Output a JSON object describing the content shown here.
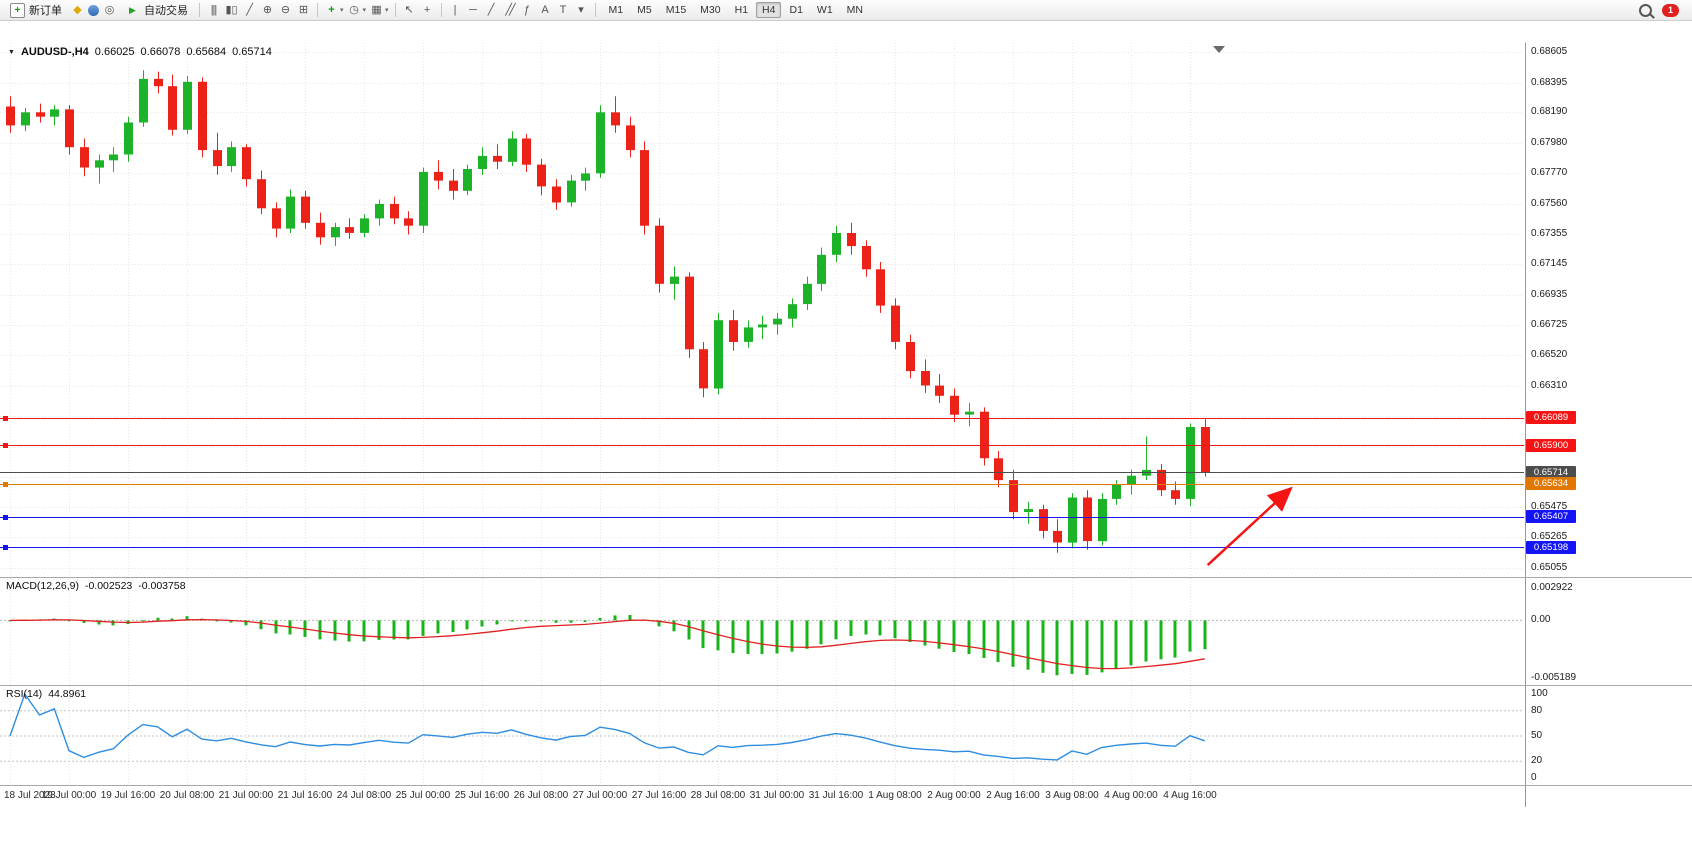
{
  "toolbar": {
    "new_order_label": "新订单",
    "auto_trading_label": "自动交易",
    "timeframes": [
      "M1",
      "M5",
      "M15",
      "M30",
      "H1",
      "H4",
      "D1",
      "W1",
      "MN"
    ],
    "active_timeframe": "H4",
    "notification_count": "1"
  },
  "icons": {
    "symbol_menu": "▼",
    "market_watch": "◆",
    "terminal": "◎",
    "auto_trading_play": "▶",
    "bars_chart": "|||",
    "candle_chart": "▮▯",
    "line_chart": "╱",
    "zoom_in": "⊕",
    "zoom_out": "⊖",
    "tile_windows": "⊞",
    "indicators_add": "+",
    "period_clock": "◷",
    "templates": "▦",
    "cursor": "↖",
    "crosshair": "+",
    "vertical_line": "|",
    "horizontal_line": "─",
    "trendline": "╱",
    "channel": "╱╱",
    "fibonacci": "ƒ",
    "text": "A",
    "text_label": "T",
    "shapes": "▾",
    "dropdown": "▾"
  },
  "colors": {
    "bull": "#1db329",
    "bear": "#ec2117",
    "macd_hist": "#18b318",
    "macd_signal": "#e02020",
    "rsi_line": "#2e8de0",
    "grid": "#e6e6e6",
    "resistance": "#f51414",
    "support": "#1414f5",
    "trend_orange": "#e07800",
    "current_price": "#4d4d4d",
    "annotation": "#f51414"
  },
  "chart_data": {
    "type": "candlestick",
    "symbol": "AUDUSD-",
    "timeframe": "H4",
    "title": "AUDUSD-,H4",
    "current_ohlc": {
      "open": "0.66025",
      "high": "0.66078",
      "low": "0.65684",
      "close": "0.65714"
    },
    "price_range": [
      0.65055,
      0.68605
    ],
    "price_axis_ticks": [
      "0.68605",
      "0.68395",
      "0.68190",
      "0.67980",
      "0.67770",
      "0.67560",
      "0.67355",
      "0.67145",
      "0.66935",
      "0.66725",
      "0.66520",
      "0.66310",
      "0.66100",
      "0.65890",
      "0.65680",
      "0.65475",
      "0.65265",
      "0.65055"
    ],
    "levels": [
      {
        "price": 0.66089,
        "label": "0.66089",
        "color_key": "resistance"
      },
      {
        "price": 0.659,
        "label": "0.65900",
        "color_key": "resistance"
      },
      {
        "price": 0.65714,
        "label": "0.65714",
        "color_key": "current_price",
        "current": true
      },
      {
        "price": 0.65634,
        "label": "0.65634",
        "color_key": "trend_orange"
      },
      {
        "price": 0.65407,
        "label": "0.65407",
        "color_key": "support"
      },
      {
        "price": 0.65198,
        "label": "0.65198",
        "color_key": "support"
      }
    ],
    "time_labels": [
      "18 Jul 2023",
      "19 Jul 00:00",
      "19 Jul 16:00",
      "20 Jul 08:00",
      "21 Jul 00:00",
      "21 Jul 16:00",
      "24 Jul 08:00",
      "25 Jul 00:00",
      "25 Jul 16:00",
      "26 Jul 08:00",
      "27 Jul 00:00",
      "27 Jul 16:00",
      "28 Jul 08:00",
      "31 Jul 00:00",
      "31 Jul 16:00",
      "1 Aug 08:00",
      "2 Aug 00:00",
      "2 Aug 16:00",
      "3 Aug 08:00",
      "4 Aug 00:00",
      "4 Aug 16:00"
    ],
    "label_every_n_candles": 4,
    "candles": [
      [
        0.6823,
        0.683,
        0.6805,
        0.681
      ],
      [
        0.681,
        0.6822,
        0.6806,
        0.6819
      ],
      [
        0.6819,
        0.6825,
        0.6812,
        0.6816
      ],
      [
        0.6816,
        0.6824,
        0.681,
        0.6821
      ],
      [
        0.6821,
        0.6824,
        0.679,
        0.6795
      ],
      [
        0.6795,
        0.6801,
        0.6775,
        0.6781
      ],
      [
        0.6781,
        0.679,
        0.677,
        0.6786
      ],
      [
        0.6786,
        0.6795,
        0.6778,
        0.679
      ],
      [
        0.679,
        0.6816,
        0.6785,
        0.6812
      ],
      [
        0.6812,
        0.6848,
        0.6809,
        0.6842
      ],
      [
        0.6842,
        0.6847,
        0.6832,
        0.6837
      ],
      [
        0.6837,
        0.6845,
        0.6803,
        0.6807
      ],
      [
        0.6807,
        0.6844,
        0.6804,
        0.684
      ],
      [
        0.684,
        0.6843,
        0.6788,
        0.6793
      ],
      [
        0.6793,
        0.6805,
        0.6776,
        0.6782
      ],
      [
        0.6782,
        0.6799,
        0.6778,
        0.6795
      ],
      [
        0.6795,
        0.6797,
        0.6768,
        0.6773
      ],
      [
        0.6773,
        0.6779,
        0.6749,
        0.6753
      ],
      [
        0.6753,
        0.6757,
        0.6733,
        0.6739
      ],
      [
        0.6739,
        0.6766,
        0.6736,
        0.6761
      ],
      [
        0.6761,
        0.6765,
        0.6739,
        0.6743
      ],
      [
        0.6743,
        0.675,
        0.6728,
        0.6733
      ],
      [
        0.6733,
        0.6743,
        0.6727,
        0.674
      ],
      [
        0.674,
        0.6746,
        0.6732,
        0.6736
      ],
      [
        0.6736,
        0.6749,
        0.6733,
        0.6746
      ],
      [
        0.6746,
        0.6759,
        0.6741,
        0.6756
      ],
      [
        0.6756,
        0.6761,
        0.6742,
        0.6746
      ],
      [
        0.6746,
        0.6751,
        0.6735,
        0.6741
      ],
      [
        0.6741,
        0.6781,
        0.6736,
        0.6778
      ],
      [
        0.6778,
        0.6786,
        0.6766,
        0.6772
      ],
      [
        0.6772,
        0.678,
        0.6759,
        0.6765
      ],
      [
        0.6765,
        0.6783,
        0.6762,
        0.678
      ],
      [
        0.678,
        0.6795,
        0.6776,
        0.6789
      ],
      [
        0.6789,
        0.6797,
        0.678,
        0.6785
      ],
      [
        0.6785,
        0.6806,
        0.6782,
        0.6801
      ],
      [
        0.6801,
        0.6804,
        0.6778,
        0.6783
      ],
      [
        0.6783,
        0.6787,
        0.6762,
        0.6768
      ],
      [
        0.6768,
        0.6773,
        0.6752,
        0.6757
      ],
      [
        0.6757,
        0.6776,
        0.6754,
        0.6772
      ],
      [
        0.6772,
        0.6781,
        0.6765,
        0.6777
      ],
      [
        0.6777,
        0.6824,
        0.6774,
        0.6819
      ],
      [
        0.6819,
        0.683,
        0.6805,
        0.681
      ],
      [
        0.681,
        0.6816,
        0.6788,
        0.6793
      ],
      [
        0.6793,
        0.6799,
        0.6735,
        0.6741
      ],
      [
        0.6741,
        0.6746,
        0.6695,
        0.6701
      ],
      [
        0.6701,
        0.6713,
        0.669,
        0.6706
      ],
      [
        0.6706,
        0.6709,
        0.665,
        0.6656
      ],
      [
        0.6656,
        0.6661,
        0.6623,
        0.6629
      ],
      [
        0.6629,
        0.6681,
        0.6625,
        0.6676
      ],
      [
        0.6676,
        0.6683,
        0.6655,
        0.6661
      ],
      [
        0.6661,
        0.6676,
        0.6657,
        0.6671
      ],
      [
        0.6671,
        0.6679,
        0.6663,
        0.6673
      ],
      [
        0.6673,
        0.6681,
        0.6666,
        0.6677
      ],
      [
        0.6677,
        0.6691,
        0.6671,
        0.6687
      ],
      [
        0.6687,
        0.6706,
        0.6683,
        0.6701
      ],
      [
        0.6701,
        0.6726,
        0.6696,
        0.6721
      ],
      [
        0.6721,
        0.6741,
        0.6716,
        0.6736
      ],
      [
        0.6736,
        0.6743,
        0.6721,
        0.6727
      ],
      [
        0.6727,
        0.6731,
        0.6706,
        0.6711
      ],
      [
        0.6711,
        0.6716,
        0.6681,
        0.6686
      ],
      [
        0.6686,
        0.6691,
        0.6656,
        0.6661
      ],
      [
        0.6661,
        0.6666,
        0.6636,
        0.6641
      ],
      [
        0.6641,
        0.6649,
        0.6626,
        0.6631
      ],
      [
        0.6631,
        0.6639,
        0.6619,
        0.6624
      ],
      [
        0.6624,
        0.6629,
        0.6606,
        0.6611
      ],
      [
        0.6611,
        0.6619,
        0.6603,
        0.6613
      ],
      [
        0.6613,
        0.6616,
        0.6576,
        0.6581
      ],
      [
        0.6581,
        0.6586,
        0.6561,
        0.6566
      ],
      [
        0.6566,
        0.6573,
        0.6539,
        0.6544
      ],
      [
        0.6544,
        0.6551,
        0.6536,
        0.6546
      ],
      [
        0.6546,
        0.6549,
        0.6526,
        0.6531
      ],
      [
        0.6531,
        0.6539,
        0.6516,
        0.6523
      ],
      [
        0.6523,
        0.6557,
        0.6519,
        0.6554
      ],
      [
        0.6554,
        0.6559,
        0.6518,
        0.6524
      ],
      [
        0.6524,
        0.6557,
        0.6521,
        0.6553
      ],
      [
        0.6553,
        0.6566,
        0.6549,
        0.6563
      ],
      [
        0.6563,
        0.6573,
        0.6556,
        0.6569
      ],
      [
        0.6569,
        0.6596,
        0.6566,
        0.6573
      ],
      [
        0.6573,
        0.6577,
        0.6555,
        0.6559
      ],
      [
        0.6559,
        0.6565,
        0.6549,
        0.6553
      ],
      [
        0.6553,
        0.6605,
        0.6548,
        0.66025
      ],
      [
        0.66025,
        0.66078,
        0.65684,
        0.65714
      ]
    ],
    "indicators": [
      {
        "type": "macd",
        "name": "MACD(12,26,9)",
        "fast": 12,
        "slow": 26,
        "signal": 9,
        "main_value": "-0.002523",
        "signal_value": "-0.003758",
        "scale_labels": [
          "0.002922",
          "0.00",
          "-0.005189"
        ],
        "max": 0.002922,
        "min": -0.005189
      },
      {
        "type": "rsi",
        "name": "RSI(14)",
        "period": 14,
        "value": "44.8961",
        "scale_labels": [
          "100",
          "80",
          "50",
          "20",
          "0"
        ],
        "levels": [
          80,
          50,
          20
        ]
      }
    ],
    "annotation_arrow": {
      "from": {
        "candle": 81.2,
        "price": 0.65075
      },
      "to": {
        "candle": 86.6,
        "price": 0.6558
      }
    }
  }
}
